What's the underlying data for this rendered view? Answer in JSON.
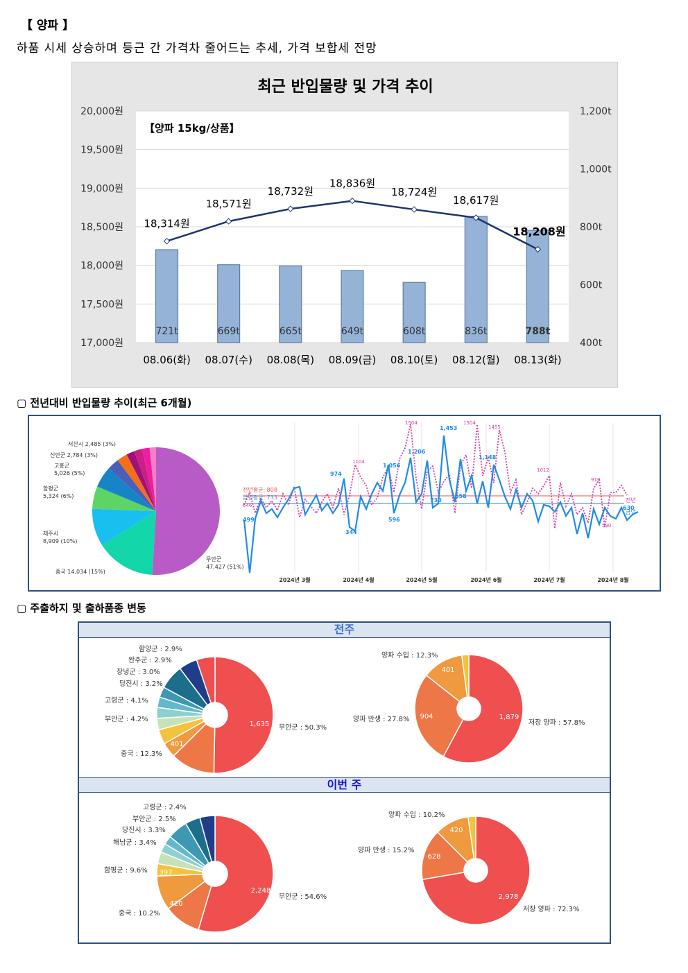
{
  "header": {
    "title": "【 양파 】",
    "subtitle": "하품 시세 상승하며 등근 간 가격차 줄어드는 추세, 가격 보합세 전망"
  },
  "main_chart": {
    "title": "최근 반입물량 및 가격 추이",
    "inner_label": "【양파 15kg/상품】",
    "left_ticks": [
      "20,000원",
      "19,500원",
      "19,000원",
      "18,500원",
      "18,000원",
      "17,500원",
      "17,000원"
    ],
    "right_ticks": [
      "1,200t",
      "1,000t",
      "800t",
      "600t",
      "400t"
    ],
    "bar_color": "#95b3d7",
    "line_color": "#1f3470"
  },
  "chart_data": [
    {
      "type": "bar",
      "title": "최근 반입물량 및 가격 추이",
      "categories": [
        "08.06(화)",
        "08.07(수)",
        "08.08(목)",
        "08.09(금)",
        "08.10(토)",
        "08.12(월)",
        "08.13(화)"
      ],
      "series": [
        {
          "name": "반입물량",
          "axis": "right",
          "values": [
            721,
            669,
            665,
            649,
            608,
            836,
            788
          ],
          "labels": [
            "721t",
            "669t",
            "665t",
            "649t",
            "608t",
            "836t",
            "788t"
          ]
        },
        {
          "name": "가격",
          "axis": "left",
          "type": "line",
          "values": [
            18314,
            18571,
            18732,
            18836,
            18724,
            18617,
            18208
          ],
          "labels": [
            "18,314원",
            "18,571원",
            "18,732원",
            "18,836원",
            "18,724원",
            "18,617원",
            "18,208원"
          ]
        }
      ],
      "ylim_left": [
        17000,
        20000
      ],
      "ylim_right": [
        400,
        1200
      ]
    },
    {
      "type": "pie",
      "title": "전년대비 반입물량 추이(최근 6개월)",
      "labels": [
        "무안군",
        "중국",
        "제주시",
        "함평군",
        "고흥군",
        "신안군",
        "서산시",
        "",
        "",
        "",
        ""
      ],
      "values": [
        47427,
        14034,
        8909,
        5324,
        5026,
        2784,
        2485,
        1900,
        1900,
        1800,
        1500
      ],
      "label_text": [
        "무안군\n47,427 (51%)",
        "중국 14,034 (15%)",
        "제주시\n8,909 (10%)",
        "함평군\n5,324 (6%)",
        "고흥군\n5,026 (5%)",
        "신안군 2,784 (3%)",
        "서산시 2,485 (3%)"
      ],
      "colors": [
        "#b85bc6",
        "#13d6aa",
        "#19c0ef",
        "#5ed467",
        "#1784c8",
        "#4a5fb8",
        "#f36f1c",
        "#9e1278",
        "#c91f86",
        "#ef1ea0",
        "#f57ec9"
      ]
    },
    {
      "type": "line",
      "x_labels": [
        "2024년 3월",
        "2024년 4월",
        "2024년 5월",
        "2024년 6월",
        "2024년 7월",
        "2024년 8월"
      ],
      "series": [
        {
          "name": "전년",
          "avg_label": "전년평균: 808",
          "color": "#d63ba6"
        },
        {
          "name": "금년",
          "avg_label": "금년평균: 733",
          "color": "#1f8be6"
        }
      ],
      "annotations_this": [
        "499",
        "974",
        "344",
        "1,056",
        "1,206",
        "596",
        "730",
        "1,453",
        "1,148",
        "658",
        "630"
      ],
      "annotations_prev": [
        "646",
        "1104",
        "1504",
        "1504",
        "1455",
        "1012",
        "919",
        "590"
      ]
    },
    {
      "type": "pie",
      "title": "전주 – 지역",
      "labels": [
        "무안군",
        "중국",
        "부안군",
        "고령군",
        "당진시",
        "창녕군",
        "완주군",
        "함양군"
      ],
      "percents": [
        50.3,
        12.3,
        4.2,
        4.1,
        3.2,
        3.0,
        2.9,
        2.9
      ],
      "values_shown": {
        "무안군": 1635,
        "중국": 401
      }
    },
    {
      "type": "pie",
      "title": "전주 – 품종",
      "labels": [
        "저장 양파",
        "양파 만생",
        "양파 수입"
      ],
      "percents": [
        57.8,
        27.8,
        12.3
      ],
      "values": [
        1879,
        904,
        401
      ]
    },
    {
      "type": "pie",
      "title": "이번 주 – 지역",
      "labels": [
        "무안군",
        "중국",
        "함평군",
        "해남군",
        "당진시",
        "부안군",
        "고령군"
      ],
      "percents": [
        54.6,
        10.2,
        9.6,
        3.4,
        3.3,
        2.5,
        2.4
      ],
      "values_shown": {
        "무안군": 2248,
        "중국": 420,
        "함평군": 397
      }
    },
    {
      "type": "pie",
      "title": "이번 주 – 품종",
      "labels": [
        "저장 양파",
        "양파 만생",
        "양파 수입"
      ],
      "percents": [
        72.3,
        15.2,
        10.2
      ],
      "values": [
        2978,
        628,
        420
      ]
    }
  ],
  "sections": {
    "yoy_title": "▢ 전년대비 반입물량 추이(최근 6개월)",
    "origin_title": "▢ 주출하지 및 출하품종 변동"
  },
  "panels": {
    "prev_week": "전주",
    "this_week": "이번 주"
  },
  "yoy_chart": {
    "avg_prev": "전년평균: 808",
    "avg_this": "금년평균: 733",
    "legend_prev": "전년",
    "legend_this": "금년"
  },
  "donuts": {
    "prev_region": [
      {
        "label": "무안군 : 50.3%",
        "value": "1,635"
      },
      {
        "label": "중국 : 12.3%",
        "value": "401"
      },
      {
        "label": "부안군 : 4.2%",
        "value": ""
      },
      {
        "label": "고령군 : 4.1%",
        "value": ""
      },
      {
        "label": "당진시 : 3.2%",
        "value": ""
      },
      {
        "label": "창녕군 : 3.0%",
        "value": ""
      },
      {
        "label": "완주군 : 2.9%",
        "value": ""
      },
      {
        "label": "함양군 : 2.9%",
        "value": ""
      }
    ],
    "prev_variety": [
      {
        "label": "저장 양파 : 57.8%",
        "value": "1,879"
      },
      {
        "label": "양파 만생 : 27.8%",
        "value": "904"
      },
      {
        "label": "양파 수입 : 12.3%",
        "value": "401"
      }
    ],
    "this_region": [
      {
        "label": "무안군 : 54.6%",
        "value": "2,248"
      },
      {
        "label": "중국 : 10.2%",
        "value": "420"
      },
      {
        "label": "함평군 : 9.6%",
        "value": "397"
      },
      {
        "label": "해남군 : 3.4%",
        "value": ""
      },
      {
        "label": "당진시 : 3.3%",
        "value": ""
      },
      {
        "label": "부안군 : 2.5%",
        "value": ""
      },
      {
        "label": "고령군 : 2.4%",
        "value": ""
      }
    ],
    "this_variety": [
      {
        "label": "저장 양파 : 72.3%",
        "value": "2,978"
      },
      {
        "label": "양파 만생 : 15.2%",
        "value": "628"
      },
      {
        "label": "양파 수입 : 10.2%",
        "value": "420"
      }
    ]
  }
}
